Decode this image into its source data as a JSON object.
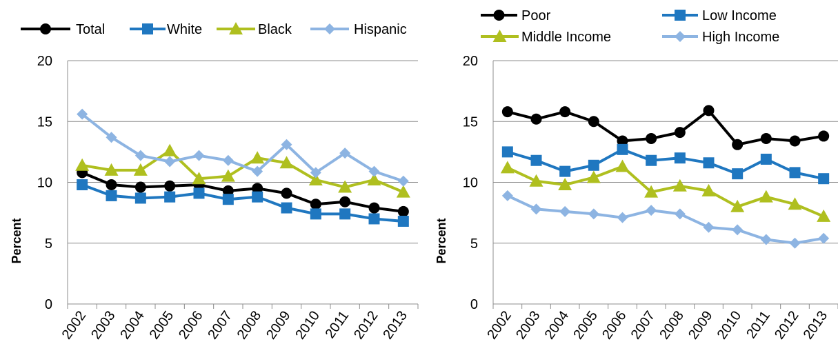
{
  "chart_data": [
    {
      "type": "line",
      "ylabel": "Percent",
      "xlabel": "",
      "ylim": [
        0,
        20
      ],
      "yticks": [
        0,
        5,
        10,
        15,
        20
      ],
      "grid": "horizontal",
      "legend": "top",
      "categories": [
        "2002",
        "2003",
        "2004",
        "2005",
        "2006",
        "2007",
        "2008",
        "2009",
        "2010",
        "2011",
        "2012",
        "2013"
      ],
      "series": [
        {
          "name": "Total",
          "color": "#000000",
          "marker": "circle",
          "values": [
            10.8,
            9.8,
            9.6,
            9.7,
            9.8,
            9.3,
            9.5,
            9.1,
            8.2,
            8.4,
            7.9,
            7.6
          ]
        },
        {
          "name": "White",
          "color": "#1F77C0",
          "marker": "square",
          "values": [
            9.8,
            8.9,
            8.7,
            8.8,
            9.1,
            8.6,
            8.8,
            7.9,
            7.4,
            7.4,
            7.0,
            6.8
          ]
        },
        {
          "name": "Black",
          "color": "#AFBF1F",
          "marker": "triangle",
          "values": [
            11.4,
            11.0,
            11.0,
            12.6,
            10.3,
            10.5,
            12.0,
            11.6,
            10.2,
            9.6,
            10.2,
            9.2
          ]
        },
        {
          "name": "Hispanic",
          "color": "#8DB4E2",
          "marker": "diamond",
          "values": [
            15.6,
            13.7,
            12.2,
            11.7,
            12.2,
            11.8,
            10.9,
            13.1,
            10.8,
            12.4,
            10.9,
            10.1
          ]
        }
      ]
    },
    {
      "type": "line",
      "ylabel": "Percent",
      "xlabel": "",
      "ylim": [
        0,
        20
      ],
      "yticks": [
        0,
        5,
        10,
        15,
        20
      ],
      "grid": "horizontal",
      "legend": "top",
      "categories": [
        "2002",
        "2003",
        "2004",
        "2005",
        "2006",
        "2007",
        "2008",
        "2009",
        "2010",
        "2011",
        "2012",
        "2013"
      ],
      "series": [
        {
          "name": "Poor",
          "color": "#000000",
          "marker": "circle",
          "values": [
            15.8,
            15.2,
            15.8,
            15.0,
            13.4,
            13.6,
            14.1,
            15.9,
            13.1,
            13.6,
            13.4,
            13.8
          ]
        },
        {
          "name": "Low Income",
          "color": "#1F77C0",
          "marker": "square",
          "values": [
            12.5,
            11.8,
            10.9,
            11.4,
            12.7,
            11.8,
            12.0,
            11.6,
            10.7,
            11.9,
            10.8,
            10.3
          ]
        },
        {
          "name": "Middle Income",
          "color": "#AFBF1F",
          "marker": "triangle",
          "values": [
            11.2,
            10.1,
            9.8,
            10.4,
            11.3,
            9.2,
            9.7,
            9.3,
            8.0,
            8.8,
            8.2,
            7.2
          ]
        },
        {
          "name": "High Income",
          "color": "#8DB4E2",
          "marker": "diamond",
          "values": [
            8.9,
            7.8,
            7.6,
            7.4,
            7.1,
            7.7,
            7.4,
            6.3,
            6.1,
            5.3,
            5.0,
            5.4
          ]
        }
      ]
    }
  ]
}
